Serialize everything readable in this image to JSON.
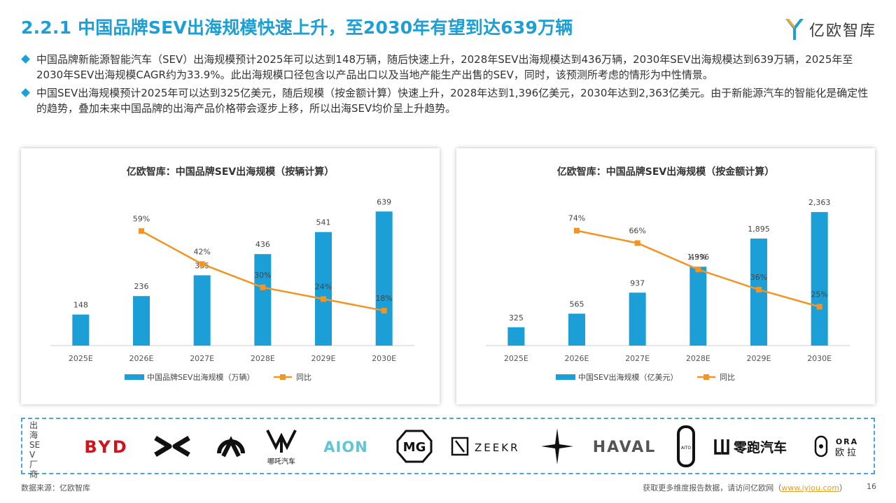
{
  "title": "2.2.1 中国品牌SEV出海规模快速上升，至2030年有望到达639万辆",
  "logo": {
    "text": "亿欧智库"
  },
  "bullets": [
    "中国品牌新能源智能汽车（SEV）出海规模预计2025年可以达到148万辆，随后快速上升，2028年SEV出海规模达到436万辆，2030年SEV出海规模达到639万辆，2025年至2030年SEV出海规模CAGR约为33.9%。此出海规模口径包含以产品出口以及当地产能生产出售的SEV，同时，该预测所考虑的情形为中性情景。",
    "中国SEV出海规模预计2025年可以达到325亿美元，随后规模（按金额计算）快速上升，2028年达到1,396亿美元，2030年达到2,363亿美元。由于新能源汽车的智能化是确定性的趋势，叠加未来中国品牌的出海产品价格带会逐步上移，所以出海SEV均价呈上升趋势。"
  ],
  "chart_data": [
    {
      "type": "bar",
      "title": "亿欧智库：中国品牌SEV出海规模（按辆计算）",
      "categories": [
        "2025E",
        "2026E",
        "2027E",
        "2028E",
        "2029E",
        "2030E"
      ],
      "series": [
        {
          "name": "中国品牌SEV出海规模（万辆）",
          "type": "bar",
          "values": [
            148,
            236,
            335,
            436,
            541,
            639
          ],
          "labels": [
            "148",
            "236",
            "335",
            "436",
            "541",
            "639"
          ]
        },
        {
          "name": "同比",
          "type": "line",
          "values": [
            null,
            59,
            42,
            30,
            24,
            18
          ],
          "labels": [
            "",
            "59%",
            "42%",
            "30%",
            "24%",
            "18%"
          ]
        }
      ],
      "bar_ylim": [
        0,
        700
      ],
      "line_ylim": [
        0,
        80
      ],
      "bar_color": "#1c9fd6",
      "line_color": "#f39423",
      "legend": "bottom"
    },
    {
      "type": "bar",
      "title": "亿欧智库：中国品牌SEV出海规模（按金额计算）",
      "categories": [
        "2025E",
        "2026E",
        "2027E",
        "2028E",
        "2029E",
        "2030E"
      ],
      "series": [
        {
          "name": "中国SEV出海规模（亿美元）",
          "type": "bar",
          "values": [
            325,
            565,
            937,
            1396,
            1895,
            2363
          ],
          "labels": [
            "325",
            "565",
            "937",
            "1,396",
            "1,895",
            "2,363"
          ]
        },
        {
          "name": "同比",
          "type": "line",
          "values": [
            null,
            74,
            66,
            49,
            36,
            25
          ],
          "labels": [
            "",
            "74%",
            "66%",
            "49%",
            "36%",
            "25%"
          ]
        }
      ],
      "bar_ylim": [
        0,
        2600
      ],
      "line_ylim": [
        0,
        100
      ],
      "bar_color": "#1c9fd6",
      "line_color": "#f39423",
      "legend": "bottom"
    }
  ],
  "brands": {
    "label": "出海SEV厂商",
    "items": [
      {
        "name": "BYD",
        "text": "BYD"
      },
      {
        "name": "xpeng",
        "text": ""
      },
      {
        "name": "nio",
        "text": ""
      },
      {
        "name": "neta",
        "text": "哪吒汽车"
      },
      {
        "name": "aion",
        "text": "AION"
      },
      {
        "name": "mg",
        "text": "MG"
      },
      {
        "name": "zeekr",
        "text": "ZEEKR"
      },
      {
        "name": "polestar",
        "text": ""
      },
      {
        "name": "haval",
        "text": "HAVAL"
      },
      {
        "name": "aito",
        "text": "AITO"
      },
      {
        "name": "leapmotor",
        "text": "零跑汽车"
      },
      {
        "name": "ora",
        "text": "ORA 欧拉"
      }
    ]
  },
  "footer": {
    "source": "数据来源：亿欧智库",
    "more_prefix": "获取更多维度报告数据，请访问亿欧网（",
    "url": "www.iyiou.com",
    "more_suffix": "）",
    "page": "16"
  }
}
